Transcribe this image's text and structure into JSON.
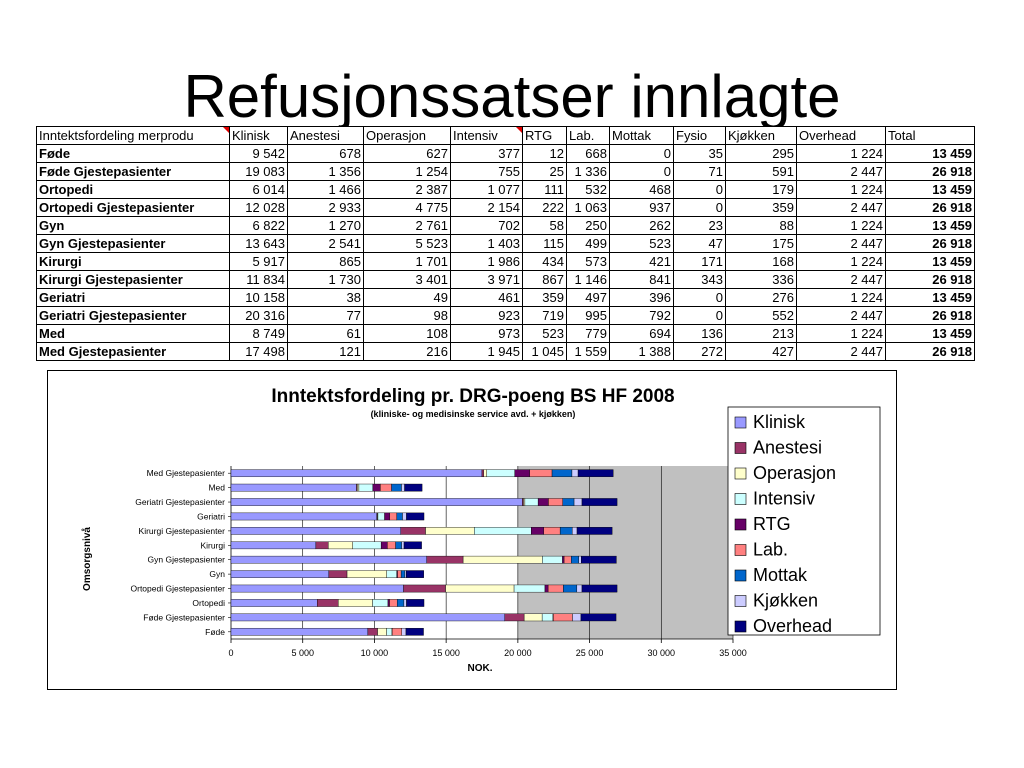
{
  "slide": {
    "title": "Refusjonssatser innlagte"
  },
  "table": {
    "headers": [
      "Inntektsfordeling merprodu",
      "Klinisk",
      "Anestesi",
      "Operasjon",
      "Intensiv",
      "RTG",
      "Lab.",
      "Mottak",
      "Fysio",
      "Kjøkken",
      "Overhead",
      "Total"
    ],
    "rows": [
      [
        "Føde",
        "9 542",
        "678",
        "627",
        "377",
        "12",
        "668",
        "0",
        "35",
        "295",
        "1 224",
        "13 459"
      ],
      [
        "Føde Gjestepasienter",
        "19 083",
        "1 356",
        "1 254",
        "755",
        "25",
        "1 336",
        "0",
        "71",
        "591",
        "2 447",
        "26 918"
      ],
      [
        "Ortopedi",
        "6 014",
        "1 466",
        "2 387",
        "1 077",
        "111",
        "532",
        "468",
        "0",
        "179",
        "1 224",
        "13 459"
      ],
      [
        "Ortopedi Gjestepasienter",
        "12 028",
        "2 933",
        "4 775",
        "2 154",
        "222",
        "1 063",
        "937",
        "0",
        "359",
        "2 447",
        "26 918"
      ],
      [
        "Gyn",
        "6 822",
        "1 270",
        "2 761",
        "702",
        "58",
        "250",
        "262",
        "23",
        "88",
        "1 224",
        "13 459"
      ],
      [
        "Gyn Gjestepasienter",
        "13 643",
        "2 541",
        "5 523",
        "1 403",
        "115",
        "499",
        "523",
        "47",
        "175",
        "2 447",
        "26 918"
      ],
      [
        "Kirurgi",
        "5 917",
        "865",
        "1 701",
        "1 986",
        "434",
        "573",
        "421",
        "171",
        "168",
        "1 224",
        "13 459"
      ],
      [
        "Kirurgi Gjestepasienter",
        "11 834",
        "1 730",
        "3 401",
        "3 971",
        "867",
        "1 146",
        "841",
        "343",
        "336",
        "2 447",
        "26 918"
      ],
      [
        "Geriatri",
        "10 158",
        "38",
        "49",
        "461",
        "359",
        "497",
        "396",
        "0",
        "276",
        "1 224",
        "13 459"
      ],
      [
        "Geriatri Gjestepasienter",
        "20 316",
        "77",
        "98",
        "923",
        "719",
        "995",
        "792",
        "0",
        "552",
        "2 447",
        "26 918"
      ],
      [
        "Med",
        "8 749",
        "61",
        "108",
        "973",
        "523",
        "779",
        "694",
        "136",
        "213",
        "1 224",
        "13 459"
      ],
      [
        "Med Gjestepasienter",
        "17 498",
        "121",
        "216",
        "1 945",
        "1 045",
        "1 559",
        "1 388",
        "272",
        "427",
        "2 447",
        "26 918"
      ]
    ]
  },
  "chart_data": {
    "type": "bar",
    "orientation": "horizontal",
    "stacked": true,
    "title": "Inntektsfordeling pr. DRG-poeng BS HF 2008",
    "subtitle": "(kliniske- og medisinske service avd. + kjøkken)",
    "xlabel": "NOK.",
    "ylabel": "Omsorgsnivå",
    "xlim": [
      0,
      35000
    ],
    "xticks": [
      0,
      5000,
      10000,
      15000,
      20000,
      25000,
      30000,
      35000
    ],
    "xtick_labels": [
      "0",
      "5 000",
      "10 000",
      "15 000",
      "20 000",
      "25 000",
      "30 000",
      "35 000"
    ],
    "grid": true,
    "legend_position": "right",
    "categories": [
      "Føde",
      "Føde Gjestepasienter",
      "Ortopedi",
      "Ortopedi Gjestepasienter",
      "Gyn",
      "Gyn Gjestepasienter",
      "Kirurgi",
      "Kirurgi Gjestepasienter",
      "Geriatri",
      "Geriatri Gjestepasienter",
      "Med",
      "Med Gjestepasienter"
    ],
    "series": [
      {
        "name": "Klinisk",
        "color": "#9999ff",
        "values": [
          9542,
          19083,
          6014,
          12028,
          6822,
          13643,
          5917,
          11834,
          10158,
          20316,
          8749,
          17498
        ]
      },
      {
        "name": "Anestesi",
        "color": "#993366",
        "values": [
          678,
          1356,
          1466,
          2933,
          1270,
          2541,
          865,
          1730,
          38,
          77,
          61,
          121
        ]
      },
      {
        "name": "Operasjon",
        "color": "#ffffcc",
        "values": [
          627,
          1254,
          2387,
          4775,
          2761,
          5523,
          1701,
          3401,
          49,
          98,
          108,
          216
        ]
      },
      {
        "name": "Intensiv",
        "color": "#ccffff",
        "values": [
          377,
          755,
          1077,
          2154,
          702,
          1403,
          1986,
          3971,
          461,
          923,
          973,
          1945
        ]
      },
      {
        "name": "RTG",
        "color": "#660066",
        "values": [
          12,
          25,
          111,
          222,
          58,
          115,
          434,
          867,
          359,
          719,
          523,
          1045
        ]
      },
      {
        "name": "Lab.",
        "color": "#ff8080",
        "values": [
          668,
          1336,
          532,
          1063,
          250,
          499,
          573,
          1146,
          497,
          995,
          779,
          1559
        ]
      },
      {
        "name": "Mottak",
        "color": "#0066cc",
        "values": [
          0,
          0,
          468,
          937,
          262,
          523,
          421,
          841,
          396,
          792,
          694,
          1388
        ]
      },
      {
        "name": "Kjøkken",
        "color": "#ccccff",
        "values": [
          295,
          591,
          179,
          359,
          88,
          175,
          168,
          336,
          276,
          552,
          213,
          427
        ]
      },
      {
        "name": "Overhead",
        "color": "#000080",
        "values": [
          1224,
          2447,
          1224,
          2447,
          1224,
          2447,
          1224,
          2447,
          1224,
          2447,
          1224,
          2447
        ]
      }
    ]
  }
}
